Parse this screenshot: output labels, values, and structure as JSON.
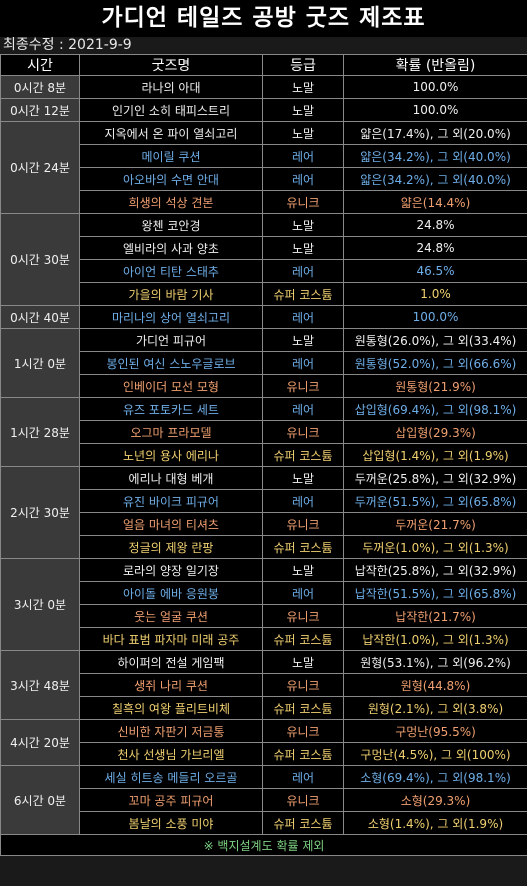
{
  "title": "가디언 테일즈 공방 굿즈 제조표",
  "updated": "최종수정 : 2021-9-9",
  "headers": [
    "시간",
    "굿즈명",
    "등급",
    "확률 (반올림)"
  ],
  "colors": {
    "노말": "#f0f0f0",
    "레어": "#6eaee8",
    "유니크": "#f0a070",
    "슈퍼 코스튬": "#f0d070"
  },
  "groups": [
    {
      "time": "0시간 8분",
      "items": [
        {
          "name": "라나의 아대",
          "grade": "노말",
          "prob": "100.0%"
        }
      ]
    },
    {
      "time": "0시간 12분",
      "items": [
        {
          "name": "인기인 소히 태피스트리",
          "grade": "노말",
          "prob": "100.0%"
        }
      ]
    },
    {
      "time": "0시간 24분",
      "items": [
        {
          "name": "지옥에서 온 파이 열쇠고리",
          "grade": "노말",
          "prob": "얇은(17.4%), 그 외(20.0%)"
        },
        {
          "name": "메이릴 쿠션",
          "grade": "레어",
          "prob": "얇은(34.2%), 그 외(40.0%)"
        },
        {
          "name": "아오바의 수면 안대",
          "grade": "레어",
          "prob": "얇은(34.2%), 그 외(40.0%)"
        },
        {
          "name": "희생의 석상 견본",
          "grade": "유니크",
          "prob": "얇은(14.4%)"
        }
      ]
    },
    {
      "time": "0시간 30분",
      "items": [
        {
          "name": "왕첸 코안경",
          "grade": "노말",
          "prob": "24.8%"
        },
        {
          "name": "엘비라의 사과 양초",
          "grade": "노말",
          "prob": "24.8%"
        },
        {
          "name": "아이언 티탄 스태추",
          "grade": "레어",
          "prob": "46.5%"
        },
        {
          "name": "가을의 바람 기사",
          "grade": "슈퍼 코스튬",
          "prob": "1.0%"
        }
      ]
    },
    {
      "time": "0시간 40분",
      "items": [
        {
          "name": "마리나의 상어 열쇠고리",
          "grade": "레어",
          "prob": "100.0%"
        }
      ]
    },
    {
      "time": "1시간 0분",
      "items": [
        {
          "name": "가디언 피규어",
          "grade": "노말",
          "prob": "원통형(26.0%), 그 외(33.4%)"
        },
        {
          "name": "봉인된 여신 스노우글로브",
          "grade": "레어",
          "prob": "원통형(52.0%), 그 외(66.6%)"
        },
        {
          "name": "인베이더 모선 모형",
          "grade": "유니크",
          "prob": "원통형(21.9%)"
        }
      ]
    },
    {
      "time": "1시간 28분",
      "items": [
        {
          "name": "유즈 포토카드 세트",
          "grade": "레어",
          "prob": "삽입형(69.4%), 그 외(98.1%)"
        },
        {
          "name": "오그마 프라모델",
          "grade": "유니크",
          "prob": "삽입형(29.3%)"
        },
        {
          "name": "노년의 용사 에리나",
          "grade": "슈퍼 코스튬",
          "prob": "삽입형(1.4%), 그 외(1.9%)"
        }
      ]
    },
    {
      "time": "2시간 30분",
      "items": [
        {
          "name": "에리나 대형 베개",
          "grade": "노말",
          "prob": "두꺼운(25.8%), 그 외(32.9%)"
        },
        {
          "name": "유진 바이크 피규어",
          "grade": "레어",
          "prob": "두꺼운(51.5%), 그 외(65.8%)"
        },
        {
          "name": "얼음 마녀의 티셔츠",
          "grade": "유니크",
          "prob": "두꺼운(21.7%)"
        },
        {
          "name": "정글의 제왕 란팡",
          "grade": "슈퍼 코스튬",
          "prob": "두꺼운(1.0%), 그 외(1.3%)"
        }
      ]
    },
    {
      "time": "3시간 0분",
      "items": [
        {
          "name": "로라의 양장 일기장",
          "grade": "노말",
          "prob": "납작한(25.8%), 그 외(32.9%)"
        },
        {
          "name": "아이돌 에바 응원봉",
          "grade": "레어",
          "prob": "납작한(51.5%), 그 외(65.8%)"
        },
        {
          "name": "웃는 얼굴 쿠션",
          "grade": "유니크",
          "prob": "납작한(21.7%)"
        },
        {
          "name": "바다 표범 파자마 미래 공주",
          "grade": "슈퍼 코스튬",
          "prob": "납작한(1.0%), 그 외(1.3%)"
        }
      ]
    },
    {
      "time": "3시간 48분",
      "items": [
        {
          "name": "하이퍼의 전설 게임팩",
          "grade": "노말",
          "prob": "원형(53.1%), 그 외(96.2%)"
        },
        {
          "name": "생쥐 나리 쿠션",
          "grade": "유니크",
          "prob": "원형(44.8%)"
        },
        {
          "name": "칠흑의 여왕 플리트비체",
          "grade": "슈퍼 코스튬",
          "prob": "원형(2.1%), 그 외(3.8%)"
        }
      ]
    },
    {
      "time": "4시간 20분",
      "items": [
        {
          "name": "신비한 자판기 저금통",
          "grade": "유니크",
          "prob": "구멍난(95.5%)"
        },
        {
          "name": "천사 선생님 가브리엘",
          "grade": "슈퍼 코스튬",
          "prob": "구멍난(4.5%), 그 외(100%)"
        }
      ]
    },
    {
      "time": "6시간 0분",
      "items": [
        {
          "name": "세실 히트송 메들리 오르골",
          "grade": "레어",
          "prob": "소형(69.4%), 그 외(98.1%)"
        },
        {
          "name": "꼬마 공주 피규어",
          "grade": "유니크",
          "prob": "소형(29.3%)"
        },
        {
          "name": "봄날의 소풍 미야",
          "grade": "슈퍼 코스튬",
          "prob": "소형(1.4%), 그 외(1.9%)"
        }
      ]
    }
  ],
  "footnote": "※ 백지설계도 확률 제외"
}
